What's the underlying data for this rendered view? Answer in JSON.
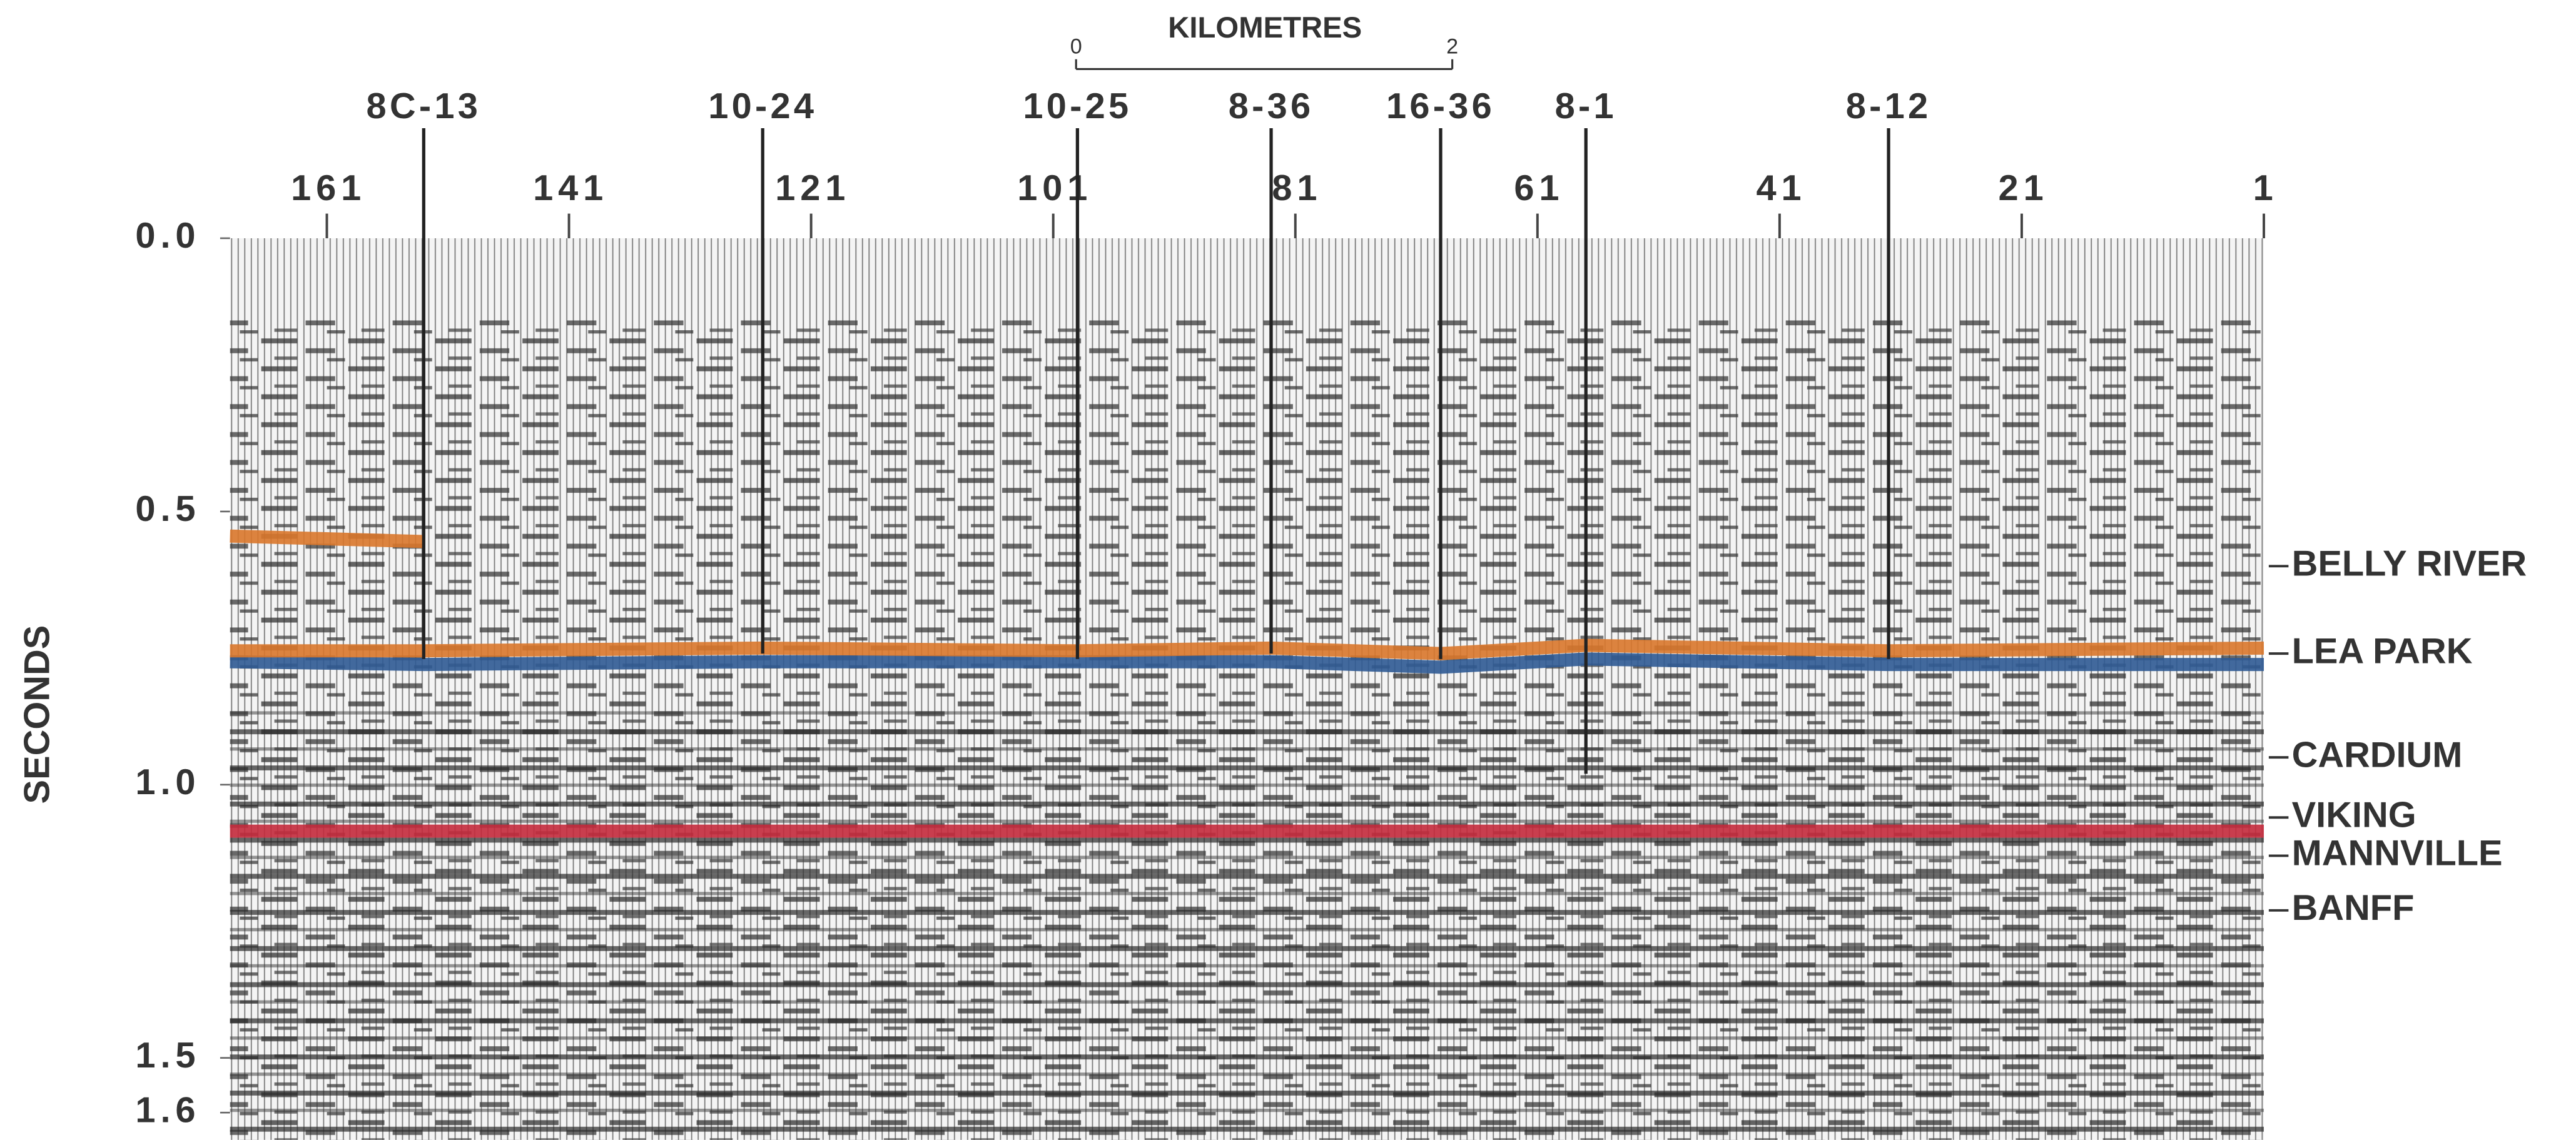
{
  "chart_data": {
    "type": "seismic",
    "y_label": "SECONDS",
    "ylim": [
      0,
      1.65
    ],
    "yticks": [
      {
        "value": 0,
        "label": "0.0"
      },
      0.5,
      {
        "value": 1,
        "label": "1.0"
      },
      1.5,
      1.6
    ],
    "xlim": [
      169,
      1
    ],
    "xticks": [
      161,
      141,
      121,
      101,
      81,
      61,
      41,
      21,
      1
    ],
    "scale_bar": {
      "title": "KILOMETRES",
      "ticks": [
        0,
        2
      ]
    },
    "wells": [
      {
        "label": "8C-13",
        "x": 153,
        "td": 0.77
      },
      {
        "label": "10-24",
        "x": 125,
        "td": 0.76
      },
      {
        "label": "10-25",
        "x": 99,
        "td": 0.77
      },
      {
        "label": "8-36",
        "x": 83,
        "td": 0.76
      },
      {
        "label": "16-36",
        "x": 69,
        "td": 0.77
      },
      {
        "label": "8-1",
        "x": 57,
        "td": 0.98
      },
      {
        "label": "8-12",
        "x": 32,
        "td": 0.77
      }
    ],
    "formations": [
      {
        "label": "BELLY RIVER",
        "value": 0.6
      },
      {
        "label": "LEA PARK",
        "value": 0.76
      },
      {
        "label": "CARDIUM",
        "value": 0.95
      },
      {
        "label": "VIKING",
        "value": 1.06
      },
      {
        "label": "MANNVILLE",
        "value": 1.13
      },
      {
        "label": "BANFF",
        "value": 1.23
      }
    ],
    "horizons": [
      {
        "color": "#d9772b",
        "x": [
          169,
          153
        ],
        "values": [
          0.545,
          0.555
        ]
      },
      {
        "color": "#2f5a93",
        "x": [
          169,
          153,
          125,
          99,
          83,
          69,
          57,
          32,
          1
        ],
        "values": [
          0.775,
          0.78,
          0.775,
          0.775,
          0.775,
          0.785,
          0.77,
          0.78,
          0.78
        ]
      },
      {
        "color": "#d9772b",
        "x": [
          169,
          153,
          125,
          99,
          83,
          69,
          57,
          32,
          1
        ],
        "values": [
          0.755,
          0.755,
          0.75,
          0.755,
          0.75,
          0.76,
          0.745,
          0.755,
          0.75
        ]
      },
      {
        "color": "#c42a3c",
        "x": [
          169,
          125,
          83,
          57,
          32,
          1
        ],
        "values": [
          1.085,
          1.085,
          1.085,
          1.085,
          1.085,
          1.085
        ]
      }
    ]
  }
}
